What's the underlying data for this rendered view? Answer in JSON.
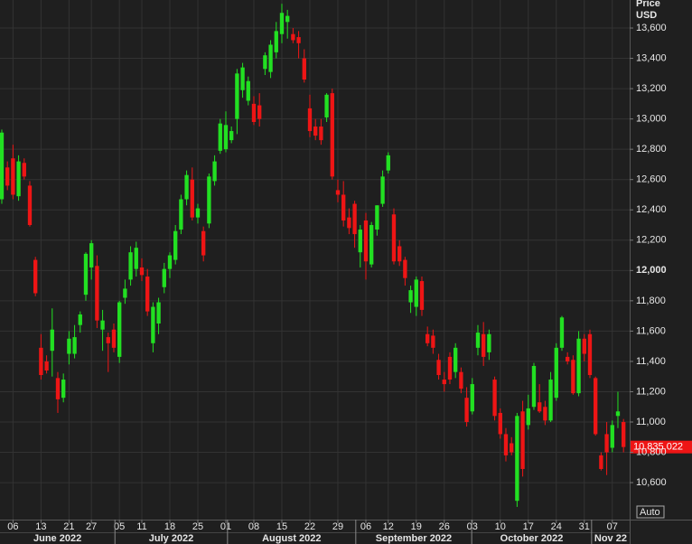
{
  "chart_data": {
    "type": "candlestick",
    "y_axis_title": "Price",
    "y_axis_unit": "USD",
    "button": "Auto",
    "up_color": "#22e022",
    "down_color": "#ee1515",
    "grid": true,
    "open": [
      12470,
      12680,
      12740,
      12490,
      12710,
      12560,
      12070,
      11490,
      11400,
      11470,
      11290,
      11160,
      11450,
      11450,
      11640,
      11840,
      12020,
      12030,
      11610,
      11560,
      11610,
      11430,
      11820,
      11940,
      12010,
      12020,
      11960,
      11520,
      11650,
      11890,
      12010,
      12070,
      12270,
      12470,
      12600,
      12350,
      12260,
      12310,
      12590,
      12790,
      12800,
      12860,
      13000,
      13190,
      13120,
      13100,
      13090,
      13330,
      13310,
      13440,
      13560,
      13640,
      13560,
      13540,
      13400,
      13070,
      12950,
      12950,
      13010,
      13170,
      12530,
      12500,
      12350,
      12440,
      12120,
      12330,
      12040,
      12270,
      12440,
      12660,
      12370,
      12160,
      12070,
      11790,
      11760,
      11930,
      11580,
      11570,
      11410,
      11280,
      11430,
      11330,
      11330,
      11160,
      11070,
      11490,
      11580,
      11460,
      11280,
      11060,
      10920,
      10860,
      10480,
      11070,
      10980,
      11100,
      11130,
      11100,
      11010,
      11160,
      11490,
      11430,
      11410,
      11190,
      11550,
      11580,
      11290,
      10780,
      10920,
      10830,
      11040,
      11000
    ],
    "high": [
      12930,
      12720,
      12830,
      12760,
      12740,
      12590,
      12090,
      11580,
      11440,
      11750,
      11330,
      11320,
      11600,
      11640,
      11730,
      12120,
      12200,
      12100,
      11740,
      11590,
      11650,
      11800,
      11940,
      12160,
      12190,
      12080,
      12010,
      11790,
      11820,
      12050,
      12120,
      12300,
      12500,
      12660,
      12680,
      12440,
      12290,
      12640,
      12760,
      13000,
      13050,
      12950,
      13330,
      13370,
      13280,
      13150,
      13170,
      13440,
      13520,
      13640,
      13760,
      13720,
      13600,
      13580,
      13460,
      13160,
      13000,
      13000,
      13170,
      13200,
      12600,
      12590,
      12410,
      12460,
      12300,
      12380,
      12320,
      12430,
      12660,
      12780,
      12410,
      12200,
      12090,
      11900,
      11960,
      11960,
      11630,
      11610,
      11450,
      11330,
      11460,
      11520,
      11360,
      11230,
      11290,
      11640,
      11660,
      11610,
      11300,
      11090,
      10960,
      10900,
      11060,
      11140,
      11180,
      11390,
      11250,
      11140,
      11330,
      11520,
      11700,
      11460,
      11440,
      11600,
      11580,
      11610,
      11300,
      10800,
      11000,
      11010,
      11200,
      11020
    ],
    "low": [
      12440,
      12530,
      12470,
      12460,
      12600,
      12290,
      11830,
      11280,
      11320,
      11300,
      11060,
      11130,
      11380,
      11420,
      11590,
      11800,
      11940,
      11620,
      11470,
      11330,
      11460,
      11390,
      11780,
      11900,
      11960,
      11930,
      11700,
      11460,
      11580,
      11850,
      11950,
      12040,
      12240,
      12430,
      12330,
      12310,
      12060,
      12280,
      12560,
      12770,
      12780,
      12840,
      12900,
      13140,
      13090,
      12960,
      12950,
      13290,
      13270,
      13400,
      13500,
      13530,
      13500,
      13400,
      13240,
      12880,
      12860,
      12830,
      12980,
      12600,
      12450,
      12290,
      12240,
      12150,
      12020,
      11940,
      12020,
      12230,
      12420,
      12640,
      12040,
      12030,
      11900,
      11720,
      11700,
      11700,
      11500,
      11450,
      11280,
      11200,
      11250,
      11290,
      11190,
      10970,
      11050,
      11440,
      11370,
      11410,
      11010,
      10890,
      10740,
      10780,
      10440,
      10640,
      10950,
      11080,
      11060,
      10980,
      11000,
      11140,
      11470,
      11380,
      11180,
      11170,
      11400,
      11290,
      10910,
      10680,
      10650,
      10800,
      10960,
      10800
    ],
    "close": [
      12910,
      12560,
      12500,
      12720,
      12620,
      12300,
      11850,
      11310,
      11340,
      11610,
      11150,
      11280,
      11550,
      11560,
      11710,
      12110,
      12180,
      11670,
      11670,
      11520,
      11490,
      11790,
      11880,
      12120,
      12150,
      11970,
      11730,
      11760,
      11790,
      12010,
      12100,
      12260,
      12470,
      12630,
      12350,
      12410,
      12100,
      12620,
      12720,
      12970,
      12960,
      12920,
      13300,
      13340,
      13250,
      12980,
      13000,
      13420,
      13490,
      13580,
      13700,
      13680,
      13520,
      13500,
      13260,
      12920,
      12890,
      12860,
      13160,
      12620,
      12500,
      12330,
      12280,
      12240,
      12270,
      12060,
      12300,
      12430,
      12620,
      12760,
      12060,
      12060,
      11950,
      11870,
      11940,
      11740,
      11520,
      11490,
      11310,
      11250,
      11280,
      11490,
      11220,
      11000,
      11250,
      11590,
      11430,
      11580,
      11040,
      10920,
      10780,
      10800,
      11040,
      10690,
      11090,
      11370,
      11070,
      11010,
      11280,
      11490,
      11690,
      11400,
      11190,
      11550,
      11450,
      11310,
      10920,
      10690,
      10800,
      10980,
      11070,
      10835.022
    ],
    "last_close_label": "10,835.022",
    "xlim": [
      -0.32,
      112.1
    ],
    "ylim": [
      10356,
      13785
    ],
    "xticks": [
      {
        "value": 2,
        "label": "06"
      },
      {
        "value": 7,
        "label": "13"
      },
      {
        "value": 12,
        "label": "21"
      },
      {
        "value": 16,
        "label": "27"
      },
      {
        "value": 21,
        "label": "05"
      },
      {
        "value": 25,
        "label": "11"
      },
      {
        "value": 30,
        "label": "18"
      },
      {
        "value": 35,
        "label": "25"
      },
      {
        "value": 40,
        "label": "01"
      },
      {
        "value": 45,
        "label": "08"
      },
      {
        "value": 50,
        "label": "15"
      },
      {
        "value": 55,
        "label": "22"
      },
      {
        "value": 60,
        "label": "29"
      },
      {
        "value": 65,
        "label": "06"
      },
      {
        "value": 69,
        "label": "12"
      },
      {
        "value": 74,
        "label": "19"
      },
      {
        "value": 79,
        "label": "26"
      },
      {
        "value": 84,
        "label": "03"
      },
      {
        "value": 89,
        "label": "10"
      },
      {
        "value": 94,
        "label": "17"
      },
      {
        "value": 99,
        "label": "24"
      },
      {
        "value": 104,
        "label": "31"
      },
      {
        "value": 109,
        "label": "07"
      }
    ],
    "month_ticks": [
      {
        "value": -0.32,
        "label": "June 2022"
      },
      {
        "value": 20.2,
        "label": "July 2022"
      },
      {
        "value": 40.3,
        "label": "August 2022"
      },
      {
        "value": 63.2,
        "label": "September 2022"
      },
      {
        "value": 83.9,
        "label": "October 2022"
      },
      {
        "value": 105.3,
        "label": "Nov 22"
      }
    ],
    "yticks": [
      {
        "value": 10600,
        "label": "10,600"
      },
      {
        "value": 10800,
        "label": "10,800"
      },
      {
        "value": 11000,
        "label": "11,000"
      },
      {
        "value": 11200,
        "label": "11,200"
      },
      {
        "value": 11400,
        "label": "11,400"
      },
      {
        "value": 11600,
        "label": "11,600"
      },
      {
        "value": 11800,
        "label": "11,800"
      },
      {
        "value": 12000,
        "label": "12,000",
        "bold": true
      },
      {
        "value": 12200,
        "label": "12,200"
      },
      {
        "value": 12400,
        "label": "12,400"
      },
      {
        "value": 12600,
        "label": "12,600"
      },
      {
        "value": 12800,
        "label": "12,800"
      },
      {
        "value": 13000,
        "label": "13,000"
      },
      {
        "value": 13200,
        "label": "13,200"
      },
      {
        "value": 13400,
        "label": "13,400"
      },
      {
        "value": 13600,
        "label": "13,600"
      }
    ]
  }
}
